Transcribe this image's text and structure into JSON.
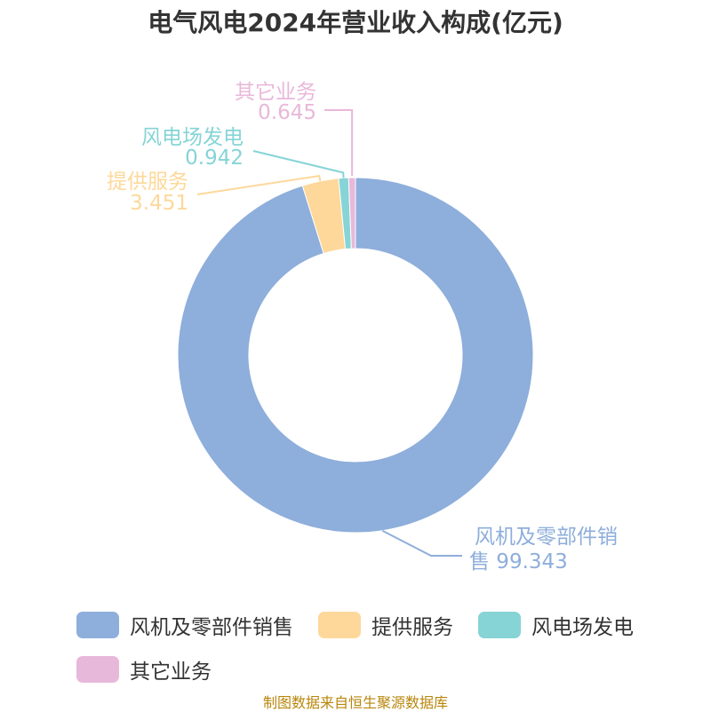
{
  "title": "电气风电2024年营业收入构成(亿元)",
  "source": "制图数据来自恒生聚源数据库",
  "chart_data": {
    "type": "pie",
    "donut": true,
    "title": "电气风电2024年营业收入构成(亿元)",
    "legend": "bottom",
    "series": [
      {
        "name": "风机及零部件销售",
        "value": 99.343,
        "value_label": "99.343",
        "color": "#8eaedb"
      },
      {
        "name": "提供服务",
        "value": 3.451,
        "value_label": "3.451",
        "color": "#fdd89a"
      },
      {
        "name": "风电场发电",
        "value": 0.942,
        "value_label": "0.942",
        "color": "#86d4d6"
      },
      {
        "name": "其它业务",
        "value": 0.645,
        "value_label": "0.645",
        "color": "#e8b8da"
      }
    ]
  }
}
